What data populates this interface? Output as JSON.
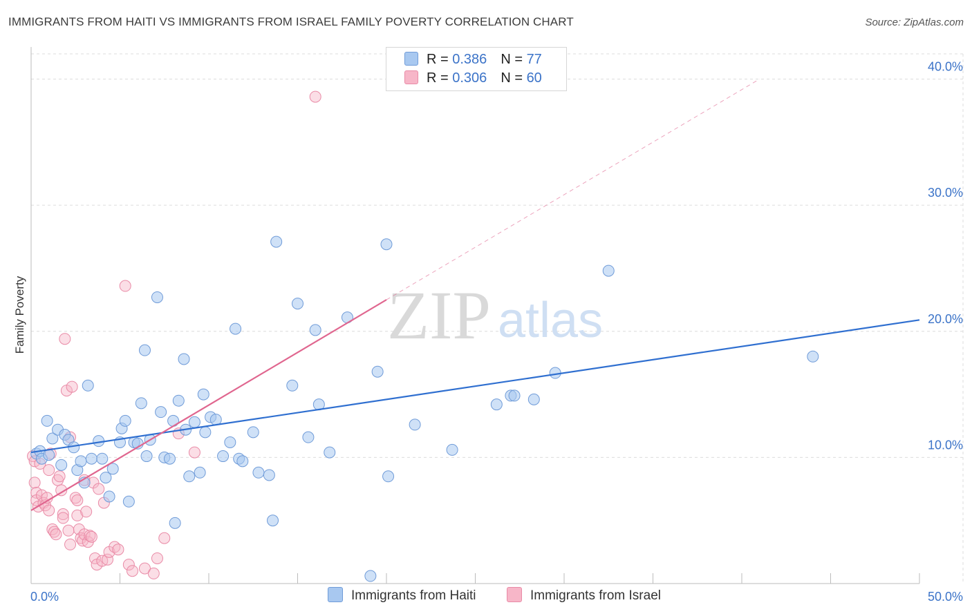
{
  "header": {
    "title": "IMMIGRANTS FROM HAITI VS IMMIGRANTS FROM ISRAEL FAMILY POVERTY CORRELATION CHART",
    "source": "Source: ZipAtlas.com"
  },
  "watermark": {
    "zip": "ZIP",
    "atlas": "atlas"
  },
  "legend": {
    "rows": [
      {
        "r_label": "R = ",
        "r_value": "0.386",
        "n_label": "N = ",
        "n_value": "77",
        "color": "#a8c8f0"
      },
      {
        "r_label": "R = ",
        "r_value": "0.306",
        "n_label": "N = ",
        "n_value": "60",
        "color": "#f7b6c8"
      }
    ]
  },
  "bottom_legend": {
    "haiti": "Immigrants from Haiti",
    "israel": "Immigrants from Israel"
  },
  "colors": {
    "haiti_fill": "#a8c8f0",
    "haiti_stroke": "#6f9bd8",
    "haiti_line": "#2f6fd0",
    "israel_fill": "#f7b6c8",
    "israel_stroke": "#e98aa6",
    "israel_line": "#e0668f",
    "axis_text": "#3b73c8",
    "grid": "#dcdcdc"
  },
  "chart_data": {
    "type": "scatter",
    "title": "IMMIGRANTS FROM HAITI VS IMMIGRANTS FROM ISRAEL FAMILY POVERTY CORRELATION CHART",
    "xlabel": "",
    "ylabel": "Family Poverty",
    "xlim": [
      0,
      50
    ],
    "ylim": [
      0,
      42
    ],
    "x_tick_labels": [
      "0.0%",
      "50.0%"
    ],
    "y_ticks": [
      10,
      20,
      30,
      40
    ],
    "y_tick_labels": [
      "10.0%",
      "20.0%",
      "30.0%",
      "40.0%"
    ],
    "series": [
      {
        "name": "Immigrants from Haiti",
        "R": 0.386,
        "N": 77,
        "trendline": {
          "x": [
            0,
            50
          ],
          "y": [
            10.4,
            20.9
          ]
        },
        "points": [
          [
            0.3,
            10.3
          ],
          [
            0.5,
            10.5
          ],
          [
            0.6,
            9.9
          ],
          [
            0.9,
            12.9
          ],
          [
            1.0,
            10.2
          ],
          [
            1.2,
            11.5
          ],
          [
            1.5,
            12.2
          ],
          [
            1.7,
            9.4
          ],
          [
            1.9,
            11.8
          ],
          [
            2.1,
            11.4
          ],
          [
            2.4,
            10.8
          ],
          [
            2.6,
            9.0
          ],
          [
            2.8,
            9.7
          ],
          [
            3.0,
            8.0
          ],
          [
            3.2,
            15.7
          ],
          [
            3.4,
            9.9
          ],
          [
            3.8,
            11.3
          ],
          [
            4.0,
            9.9
          ],
          [
            4.2,
            8.4
          ],
          [
            4.4,
            6.9
          ],
          [
            4.6,
            9.1
          ],
          [
            5.0,
            11.2
          ],
          [
            5.1,
            12.3
          ],
          [
            5.3,
            12.9
          ],
          [
            5.5,
            6.5
          ],
          [
            5.8,
            11.2
          ],
          [
            6.0,
            11.1
          ],
          [
            6.2,
            14.3
          ],
          [
            6.4,
            18.5
          ],
          [
            6.5,
            10.1
          ],
          [
            6.7,
            11.4
          ],
          [
            7.1,
            22.7
          ],
          [
            7.3,
            13.6
          ],
          [
            7.5,
            10.0
          ],
          [
            7.8,
            9.9
          ],
          [
            8.0,
            12.9
          ],
          [
            8.1,
            4.8
          ],
          [
            8.3,
            14.5
          ],
          [
            8.6,
            17.8
          ],
          [
            8.7,
            12.2
          ],
          [
            8.9,
            8.5
          ],
          [
            9.2,
            12.8
          ],
          [
            9.5,
            8.8
          ],
          [
            9.7,
            15.0
          ],
          [
            9.8,
            12.0
          ],
          [
            10.1,
            13.2
          ],
          [
            10.4,
            13.0
          ],
          [
            10.8,
            10.1
          ],
          [
            11.2,
            11.2
          ],
          [
            11.5,
            20.2
          ],
          [
            11.7,
            9.9
          ],
          [
            11.9,
            9.7
          ],
          [
            12.5,
            12.0
          ],
          [
            12.8,
            8.8
          ],
          [
            13.4,
            8.6
          ],
          [
            13.6,
            5.0
          ],
          [
            13.8,
            27.1
          ],
          [
            14.7,
            15.7
          ],
          [
            15.0,
            22.2
          ],
          [
            15.6,
            11.6
          ],
          [
            16.0,
            20.1
          ],
          [
            16.2,
            14.2
          ],
          [
            16.8,
            10.4
          ],
          [
            17.8,
            21.1
          ],
          [
            19.1,
            0.6
          ],
          [
            19.5,
            16.8
          ],
          [
            20.0,
            26.9
          ],
          [
            20.1,
            8.5
          ],
          [
            21.6,
            12.6
          ],
          [
            23.7,
            10.6
          ],
          [
            26.2,
            14.2
          ],
          [
            27.0,
            14.9
          ],
          [
            27.2,
            14.9
          ],
          [
            28.3,
            14.6
          ],
          [
            29.5,
            16.7
          ],
          [
            32.5,
            24.8
          ],
          [
            44.0,
            18.0
          ]
        ]
      },
      {
        "name": "Immigrants from Israel",
        "R": 0.306,
        "N": 60,
        "trendline": {
          "x": [
            0,
            20
          ],
          "y": [
            5.8,
            22.5
          ]
        },
        "trendline_extension": {
          "x": [
            20,
            41
          ],
          "y": [
            22.5,
            40.0
          ]
        },
        "points": [
          [
            0.1,
            10.1
          ],
          [
            0.2,
            9.7
          ],
          [
            0.2,
            8.0
          ],
          [
            0.3,
            7.2
          ],
          [
            0.3,
            6.6
          ],
          [
            0.4,
            6.1
          ],
          [
            0.5,
            9.5
          ],
          [
            0.6,
            7.0
          ],
          [
            0.7,
            6.4
          ],
          [
            0.8,
            6.2
          ],
          [
            0.9,
            6.8
          ],
          [
            1.0,
            5.8
          ],
          [
            1.0,
            9.0
          ],
          [
            1.1,
            10.3
          ],
          [
            1.2,
            4.3
          ],
          [
            1.3,
            4.1
          ],
          [
            1.4,
            3.9
          ],
          [
            1.5,
            8.2
          ],
          [
            1.6,
            8.5
          ],
          [
            1.7,
            7.4
          ],
          [
            1.8,
            5.5
          ],
          [
            1.8,
            5.2
          ],
          [
            1.9,
            19.4
          ],
          [
            2.0,
            15.3
          ],
          [
            2.1,
            4.2
          ],
          [
            2.2,
            3.1
          ],
          [
            2.2,
            11.6
          ],
          [
            2.3,
            15.6
          ],
          [
            2.5,
            6.8
          ],
          [
            2.6,
            6.6
          ],
          [
            2.6,
            5.4
          ],
          [
            2.7,
            4.3
          ],
          [
            2.8,
            3.6
          ],
          [
            2.9,
            3.4
          ],
          [
            3.0,
            3.9
          ],
          [
            3.0,
            8.2
          ],
          [
            3.1,
            5.7
          ],
          [
            3.2,
            3.3
          ],
          [
            3.3,
            3.8
          ],
          [
            3.4,
            3.7
          ],
          [
            3.5,
            8.0
          ],
          [
            3.6,
            2.0
          ],
          [
            3.7,
            1.5
          ],
          [
            3.8,
            7.5
          ],
          [
            4.0,
            1.8
          ],
          [
            4.1,
            6.4
          ],
          [
            4.3,
            1.9
          ],
          [
            4.4,
            2.5
          ],
          [
            4.7,
            2.9
          ],
          [
            4.9,
            2.7
          ],
          [
            5.3,
            23.6
          ],
          [
            5.5,
            1.5
          ],
          [
            5.7,
            1.0
          ],
          [
            6.4,
            1.2
          ],
          [
            6.9,
            0.8
          ],
          [
            7.1,
            2.0
          ],
          [
            7.5,
            3.6
          ],
          [
            8.3,
            11.9
          ],
          [
            9.2,
            10.4
          ],
          [
            16.0,
            38.6
          ]
        ]
      }
    ]
  }
}
